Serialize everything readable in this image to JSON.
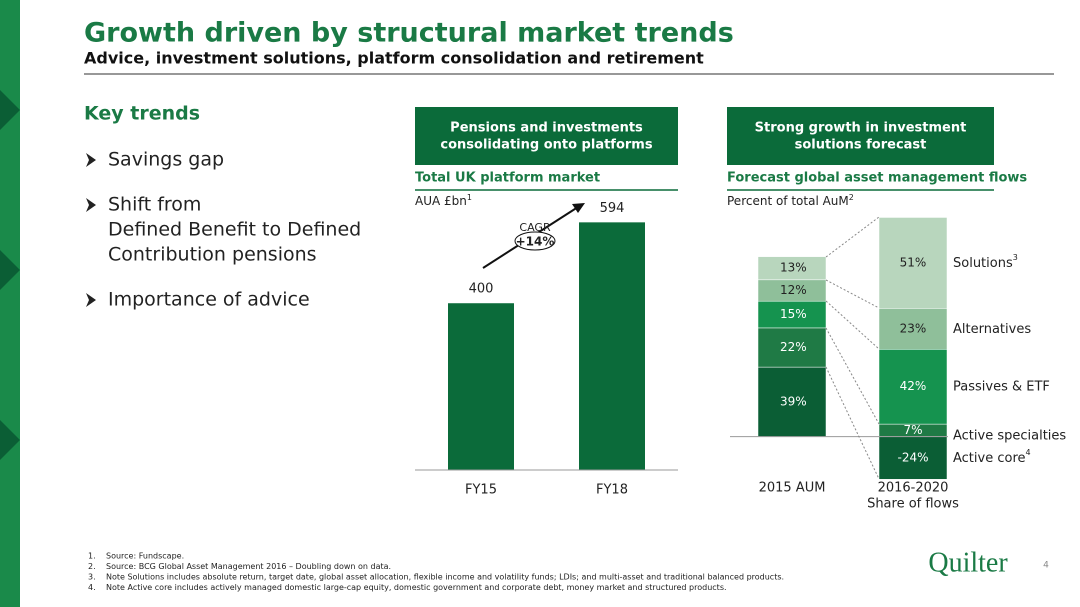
{
  "header": {
    "title": "Growth driven by structural market trends",
    "subtitle": "Advice, investment solutions, platform consolidation and retirement"
  },
  "key_trends": {
    "heading": "Key trends",
    "items": [
      [
        "Savings gap"
      ],
      [
        "Shift from",
        "Defined Benefit to Defined",
        "Contribution pensions"
      ],
      [
        "Importance of advice"
      ]
    ]
  },
  "chart_data": [
    {
      "type": "bar",
      "banner": [
        "Pensions and investments",
        "consolidating onto platforms"
      ],
      "title": "Total UK platform market",
      "ylabel": "AUA £bn",
      "ylabel_note": "1",
      "categories": [
        "FY15",
        "FY18"
      ],
      "values": [
        400,
        594
      ],
      "color": "#0b6b3a",
      "ylim": [
        0,
        650
      ],
      "cagr_label": "CAGR",
      "cagr_value": "+14%"
    },
    {
      "type": "stacked_bar",
      "banner": [
        "Strong growth in investment",
        "solutions forecast"
      ],
      "title": "Forecast global asset management flows",
      "ylabel": "Percent of total AuM",
      "ylabel_note": "2",
      "ylim": [
        -30,
        130
      ],
      "bars": [
        {
          "category": [
            "2015 AUM"
          ],
          "segments": [
            {
              "value": 39,
              "value_label": "39%",
              "color": "#0b5e35"
            },
            {
              "value": 22,
              "value_label": "22%",
              "color": "#1f7a45"
            },
            {
              "value": 15,
              "value_label": "15%",
              "color": "#15934f"
            },
            {
              "value": 12,
              "value_label": "12%",
              "color": "#8fbf9a"
            },
            {
              "value": 13,
              "value_label": "13%",
              "color": "#b8d6bd"
            }
          ]
        },
        {
          "category": [
            "2016-2020",
            "Share of flows"
          ],
          "segments": [
            {
              "name": "Active specialties",
              "note": "",
              "value": 7,
              "value_label": "7%",
              "color": "#1f7a45"
            },
            {
              "name": "Passives & ETF",
              "value": 42,
              "value_label": "42%",
              "color": "#15934f"
            },
            {
              "name": "Alternatives",
              "value": 23,
              "value_label": "23%",
              "color": "#8fbf9a"
            },
            {
              "name": "Solutions",
              "note": "3",
              "value": 51,
              "value_label": "51%",
              "color": "#b8d6bd"
            },
            {
              "name": "Active core",
              "note": "4",
              "value": -24,
              "value_label": "-24%",
              "color": "#0b5e35"
            }
          ]
        }
      ]
    }
  ],
  "footnotes": [
    {
      "number": "1.",
      "text": "Source: Fundscape."
    },
    {
      "number": "2.",
      "text": "Source: BCG Global Asset Management 2016 – Doubling down on data."
    },
    {
      "number": "3.",
      "text": "Note Solutions includes absolute return, target date, global asset allocation, flexible income and volatility funds; LDIs; and multi-asset and traditional balanced products."
    },
    {
      "number": "4.",
      "text": "Note Active core includes actively managed domestic large-cap equity, domestic government and corporate debt, money market and structured products."
    }
  ],
  "logo": "Quilter",
  "page_number": "4"
}
